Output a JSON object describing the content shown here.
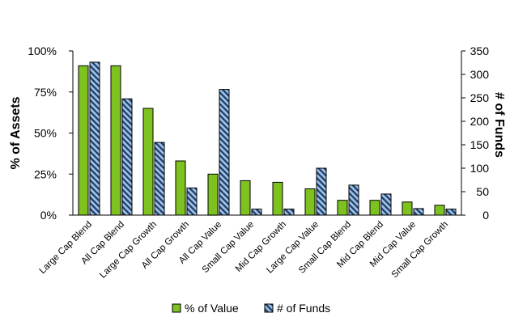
{
  "chart_data": {
    "type": "bar",
    "categories": [
      "Large Cap Blend",
      "All Cap Blend",
      "Large Cap Growth",
      "All Cap Growth",
      "All Cap Value",
      "Small Cap Value",
      "Mid Cap Growth",
      "Large Cap Value",
      "Small Cap Blend",
      "Mid Cap Blend",
      "Mid Cap Value",
      "Small Cap Growth"
    ],
    "series": [
      {
        "name": "% of Value",
        "axis": "left",
        "color": "#7dc21e",
        "values": [
          91,
          91,
          65,
          33,
          25,
          21,
          20,
          16,
          9,
          9,
          8,
          6
        ]
      },
      {
        "name": "# of Funds",
        "axis": "right",
        "color": "#9bc2e6",
        "pattern": "diagonal-stripes",
        "values": [
          326,
          248,
          155,
          58,
          268,
          13,
          13,
          100,
          64,
          45,
          14,
          13
        ]
      }
    ],
    "ylabel": "% of Assets",
    "y2label": "# of Funds",
    "ylim": [
      0,
      100
    ],
    "y2lim": [
      0,
      350
    ],
    "yticks": [
      "0%",
      "25%",
      "50%",
      "75%",
      "100%"
    ],
    "y2ticks": [
      "0",
      "50",
      "100",
      "150",
      "200",
      "250",
      "300",
      "350"
    ],
    "grid": false,
    "legend_position": "bottom"
  }
}
